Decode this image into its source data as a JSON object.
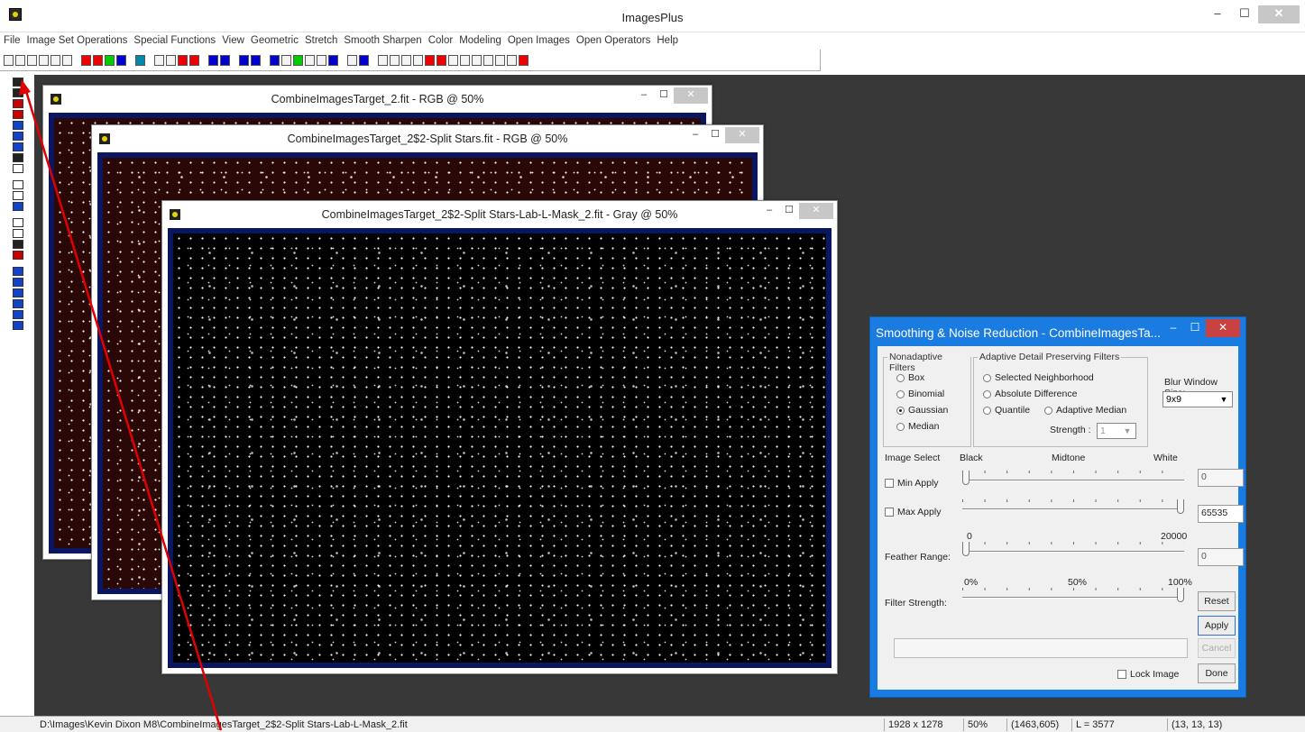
{
  "app": {
    "title": "ImagesPlus",
    "min": "–",
    "max": "☐",
    "close": "✕"
  },
  "menu": [
    "File",
    "Image Set Operations",
    "Special Functions",
    "View",
    "Geometric",
    "Stretch",
    "Smooth Sharpen",
    "Color",
    "Modeling",
    "Open Images",
    "Open Operators",
    "Help"
  ],
  "windows": [
    {
      "title": "CombineImagesTarget_2.fit - RGB @ 50%"
    },
    {
      "title": "CombineImagesTarget_2$2-Split Stars.fit - RGB @ 50%"
    },
    {
      "title": "CombineImagesTarget_2$2-Split Stars-Lab-L-Mask_2.fit - Gray @ 50%"
    }
  ],
  "dialog": {
    "title": "Smoothing & Noise Reduction - CombineImagesTa...",
    "nonadaptive": {
      "label": "Nonadaptive Filters",
      "options": [
        "Box",
        "Binomial",
        "Gaussian",
        "Median"
      ],
      "selected": "Gaussian"
    },
    "adaptive": {
      "label": "Adaptive Detail Preserving Filters",
      "selected_neighborhood": "Selected Neighborhood",
      "absolute_difference": "Absolute Difference",
      "quantile": "Quantile",
      "adaptive_median": "Adaptive Median",
      "strength_label": "Strength :",
      "strength_value": "1"
    },
    "blur": {
      "label": "Blur Window Size:",
      "value": "9x9"
    },
    "image_select": {
      "label": "Image Select",
      "black": "Black",
      "midtone": "Midtone",
      "white": "White"
    },
    "min_apply": {
      "label": "Min Apply",
      "value": "0",
      "level": 0
    },
    "max_apply": {
      "label": "Max Apply",
      "value": "65535",
      "level": 1
    },
    "feather": {
      "label": "Feather Range:",
      "min": "0",
      "max": "20000",
      "value": "0",
      "level": 0
    },
    "filter_strength": {
      "label": "Filter Strength:",
      "p0": "0%",
      "p50": "50%",
      "p100": "100%",
      "level": 1
    },
    "buttons": {
      "reset": "Reset",
      "apply": "Apply",
      "cancel": "Cancel",
      "done": "Done"
    },
    "lock_image": "Lock Image"
  },
  "status": {
    "path": "D:\\Images\\Kevin Dixon M8\\CombineImagesTarget_2$2-Split Stars-Lab-L-Mask_2.fit",
    "size": "1928 x 1278",
    "zoom": "50%",
    "coords": "(1463,605)",
    "lum": "L = 3577",
    "rgb": "(13, 13, 13)"
  },
  "colors": {
    "dialog_frame": "#1a7be0",
    "workspace": "#383838",
    "arrow": "#e00000"
  }
}
